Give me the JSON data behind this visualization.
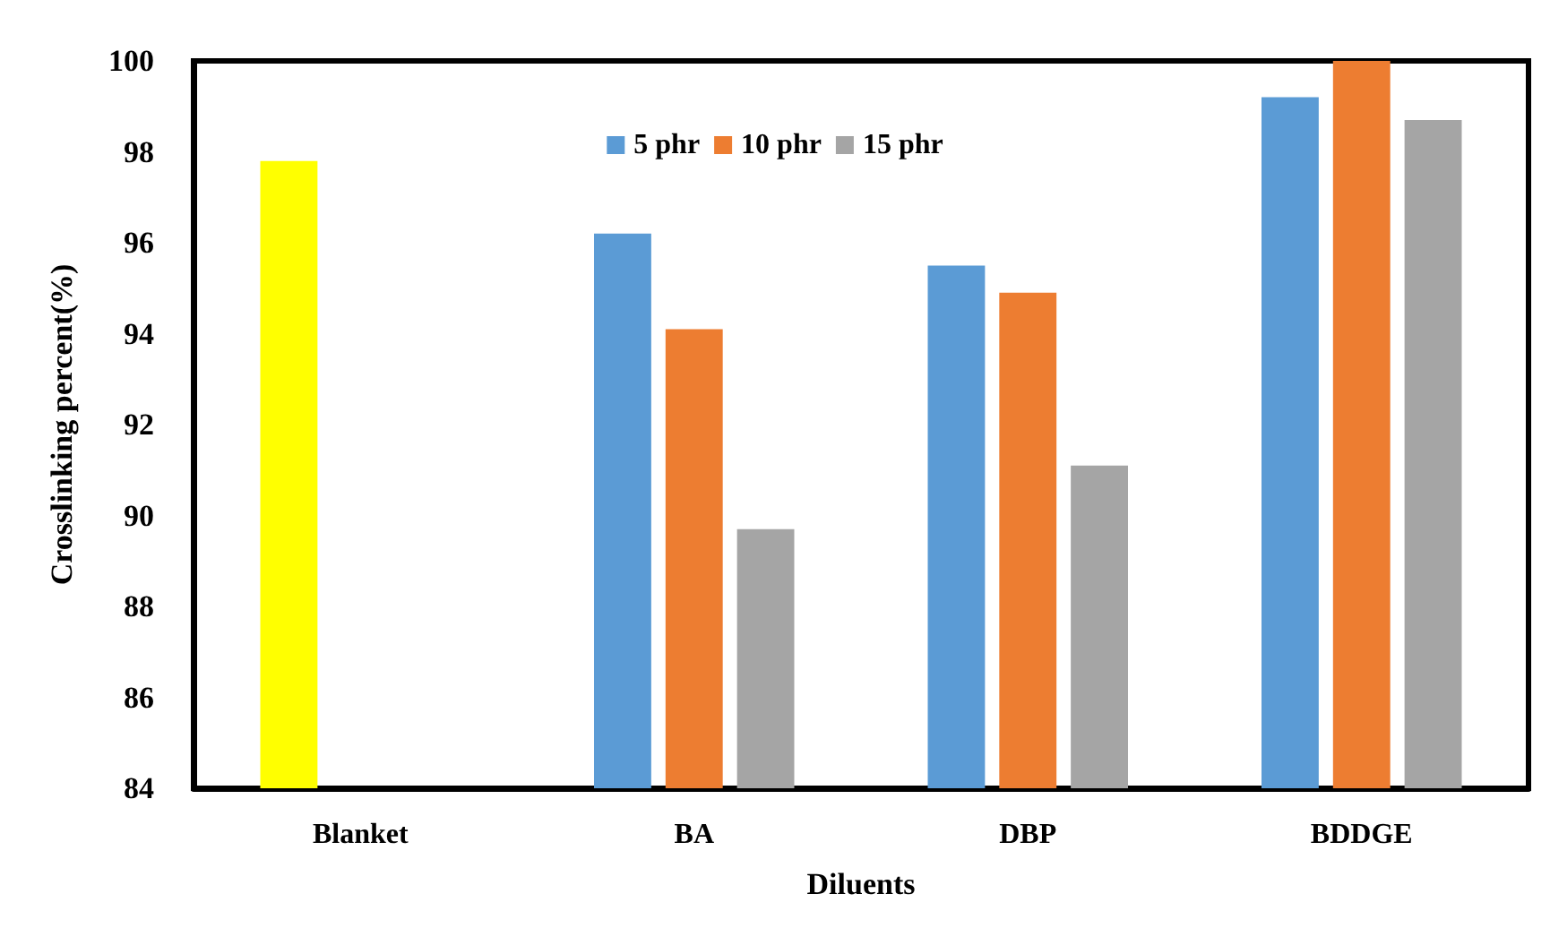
{
  "chart_data": {
    "type": "bar",
    "xlabel": "Diluents",
    "ylabel": "Crosslinking percent(%)",
    "categories": [
      "Blanket",
      "BA",
      "DBP",
      "BDDGE"
    ],
    "series": [
      {
        "name": "5 phr",
        "color": "#5b9bd5",
        "colors": [
          "#ffff00",
          "#5b9bd5",
          "#5b9bd5",
          "#5b9bd5"
        ],
        "values": [
          97.8,
          96.2,
          95.5,
          99.2
        ]
      },
      {
        "name": "10 phr",
        "color": "#ed7d31",
        "values": [
          null,
          94.1,
          94.9,
          100
        ]
      },
      {
        "name": "15 phr",
        "color": "#a5a5a5",
        "values": [
          null,
          89.7,
          91.1,
          98.7
        ]
      }
    ],
    "ylim": [
      84,
      100
    ],
    "yticks": [
      84,
      86,
      88,
      90,
      92,
      94,
      96,
      98,
      100
    ],
    "grid": false,
    "legend": "top"
  }
}
